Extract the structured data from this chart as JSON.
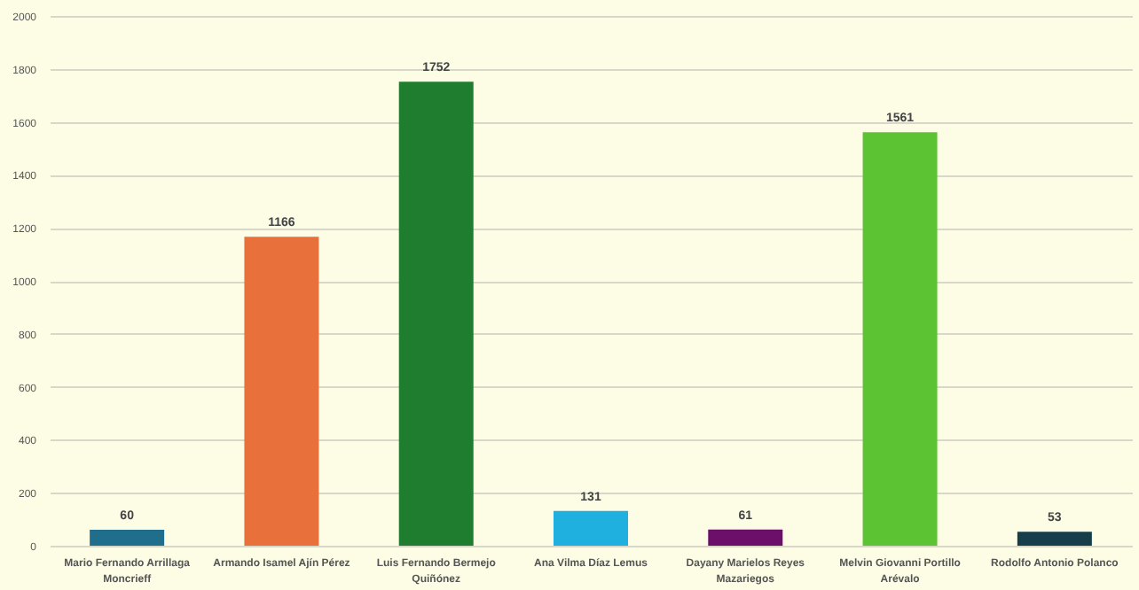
{
  "chart_data": {
    "type": "bar",
    "categories": [
      "Mario Fernando Arrillaga Moncrieff",
      "Armando Isamel Ajín Pérez",
      "Luis Fernando Bermejo Quiñónez",
      "Ana Vilma Díaz Lemus",
      "Dayany Marielos Reyes Mazariegos",
      "Melvin Giovanni Portillo Arévalo",
      "Rodolfo Antonio Polanco"
    ],
    "values": [
      60,
      1166,
      1752,
      131,
      61,
      1561,
      53
    ],
    "colors": [
      "#1f6e8c",
      "#e8703a",
      "#1e7d2e",
      "#1fb0e0",
      "#6b0f6b",
      "#5cc433",
      "#163e4a"
    ],
    "ylim": [
      0,
      2000
    ],
    "yticks": [
      0,
      200,
      400,
      600,
      800,
      1000,
      1200,
      1400,
      1600,
      1800,
      2000
    ],
    "grid": "y",
    "data_labels": true
  }
}
